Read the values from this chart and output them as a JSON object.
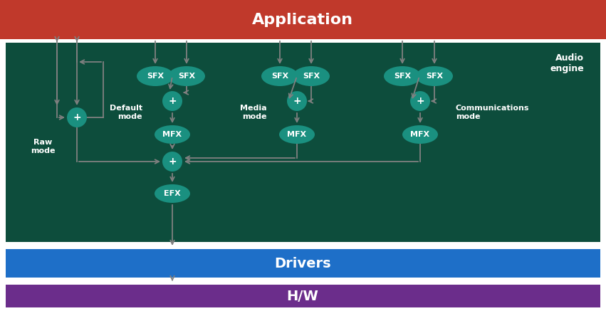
{
  "bg_color": "#ffffff",
  "app_bar_color": "#C0392B",
  "app_bar_text": "Application",
  "app_bar_text_color": "#ffffff",
  "audio_engine_bg": "#0D4D3C",
  "audio_engine_text": "Audio\nengine",
  "audio_engine_text_color": "#ffffff",
  "drivers_bar_color": "#1E6FC8",
  "drivers_text": "Drivers",
  "drivers_text_color": "#ffffff",
  "hw_bar_color": "#6B2D8B",
  "hw_text": "H/W",
  "hw_text_color": "#ffffff",
  "ellipse_sfx_color": "#1A9080",
  "ellipse_mfx_color": "#1A9080",
  "ellipse_efx_color": "#1A9080",
  "ellipse_plus_color": "#1A9080",
  "ellipse_text_color": "#ffffff",
  "arrow_color": "#808080",
  "label_color": "#ffffff",
  "raw_mode_color": "#ffffff",
  "mode_label_color": "#ffffff"
}
